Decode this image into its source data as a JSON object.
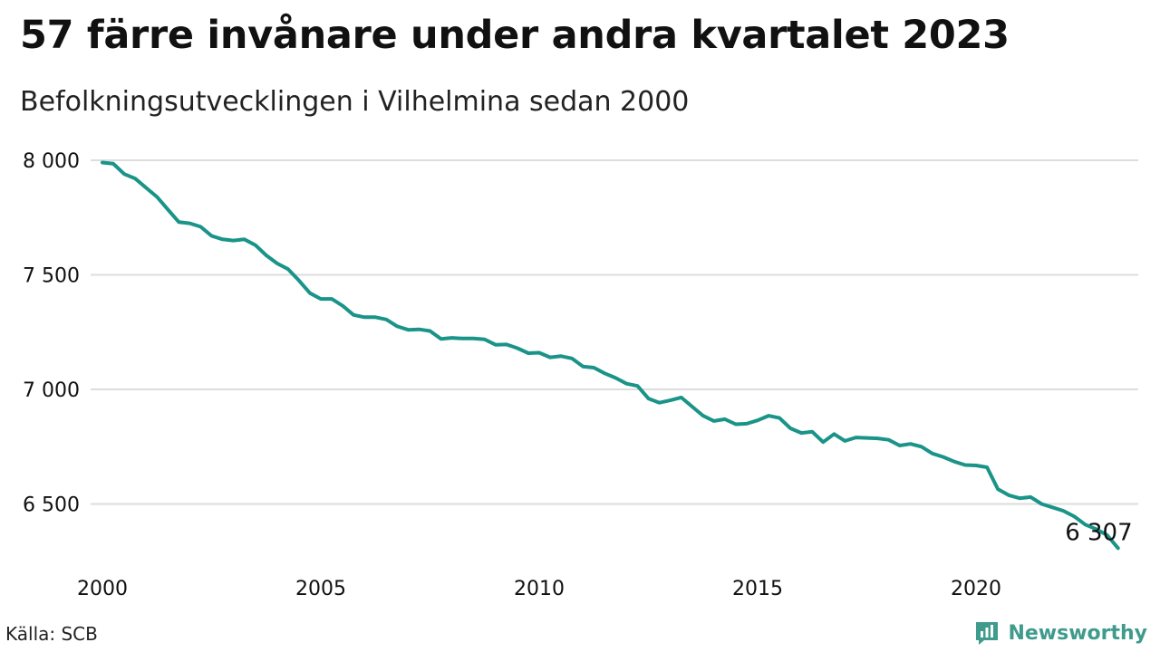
{
  "header": {
    "title": "57 färre invånare under andra kvartalet 2023",
    "subtitle": "Befolkningsutvecklingen i Vilhelmina sedan 2000"
  },
  "footer": {
    "source": "Källa: SCB",
    "brand": "Newsworthy",
    "brand_icon": "newsworthy-logo-icon"
  },
  "colors": {
    "line": "#1a9488",
    "grid": "#dddddd",
    "text": "#111111",
    "brand": "#3f9b8c"
  },
  "chart_data": {
    "type": "line",
    "title": "57 färre invånare under andra kvartalet 2023",
    "subtitle": "Befolkningsutvecklingen i Vilhelmina sedan 2000",
    "xlabel": "",
    "ylabel": "",
    "ylim": [
      6250,
      8050
    ],
    "xlim": [
      2000,
      2024
    ],
    "yticks": [
      6500,
      7000,
      7500,
      8000
    ],
    "ytick_labels": [
      "6 500",
      "7 000",
      "7 500",
      "8 000"
    ],
    "xticks": [
      2000,
      2005,
      2010,
      2015,
      2020
    ],
    "xtick_labels": [
      "2000",
      "2005",
      "2010",
      "2015",
      "2020"
    ],
    "grid": true,
    "legend": "none",
    "end_label": "6 307",
    "series": [
      {
        "x": [
          "2000-Q1",
          "2000-Q2",
          "2000-Q3",
          "2000-Q4",
          "2001-Q1",
          "2001-Q2",
          "2001-Q3",
          "2001-Q4",
          "2002-Q1",
          "2002-Q2",
          "2002-Q3",
          "2002-Q4",
          "2003-Q1",
          "2003-Q2",
          "2003-Q3",
          "2003-Q4",
          "2004-Q1",
          "2004-Q2",
          "2004-Q3",
          "2004-Q4",
          "2005-Q1",
          "2005-Q2",
          "2005-Q3",
          "2005-Q4",
          "2006-Q1",
          "2006-Q2",
          "2006-Q3",
          "2006-Q4",
          "2007-Q1",
          "2007-Q2",
          "2007-Q3",
          "2007-Q4",
          "2008-Q1",
          "2008-Q2",
          "2008-Q3",
          "2008-Q4",
          "2009-Q1",
          "2009-Q2",
          "2009-Q3",
          "2009-Q4",
          "2010-Q1",
          "2010-Q2",
          "2010-Q3",
          "2010-Q4",
          "2011-Q1",
          "2011-Q2",
          "2011-Q3",
          "2011-Q4",
          "2012-Q1",
          "2012-Q2",
          "2012-Q3",
          "2012-Q4",
          "2013-Q1",
          "2013-Q2",
          "2013-Q3",
          "2013-Q4",
          "2014-Q1",
          "2014-Q2",
          "2014-Q3",
          "2014-Q4",
          "2015-Q1",
          "2015-Q2",
          "2015-Q3",
          "2015-Q4",
          "2016-Q1",
          "2016-Q2",
          "2016-Q3",
          "2016-Q4",
          "2017-Q1",
          "2017-Q2",
          "2017-Q3",
          "2017-Q4",
          "2018-Q1",
          "2018-Q2",
          "2018-Q3",
          "2018-Q4",
          "2019-Q1",
          "2019-Q2",
          "2019-Q3",
          "2019-Q4",
          "2020-Q1",
          "2020-Q2",
          "2020-Q3",
          "2020-Q4",
          "2021-Q1",
          "2021-Q2",
          "2021-Q3",
          "2021-Q4",
          "2022-Q1",
          "2022-Q2",
          "2022-Q3",
          "2022-Q4",
          "2023-Q1",
          "2023-Q2"
        ],
        "values": [
          7990,
          7985,
          7940,
          7920,
          7880,
          7840,
          7785,
          7730,
          7725,
          7710,
          7670,
          7655,
          7650,
          7655,
          7630,
          7585,
          7550,
          7525,
          7475,
          7420,
          7395,
          7395,
          7365,
          7325,
          7315,
          7315,
          7305,
          7275,
          7260,
          7262,
          7255,
          7220,
          7225,
          7222,
          7222,
          7218,
          7195,
          7196,
          7180,
          7158,
          7160,
          7140,
          7145,
          7135,
          7100,
          7095,
          7070,
          7050,
          7025,
          7015,
          6960,
          6942,
          6952,
          6965,
          6925,
          6885,
          6862,
          6870,
          6848,
          6850,
          6865,
          6885,
          6875,
          6830,
          6810,
          6815,
          6770,
          6805,
          6775,
          6790,
          6788,
          6786,
          6780,
          6755,
          6762,
          6750,
          6720,
          6705,
          6685,
          6670,
          6668,
          6660,
          6565,
          6538,
          6525,
          6530,
          6500,
          6485,
          6470,
          6445,
          6410,
          6390,
          6364,
          6307
        ]
      }
    ]
  }
}
